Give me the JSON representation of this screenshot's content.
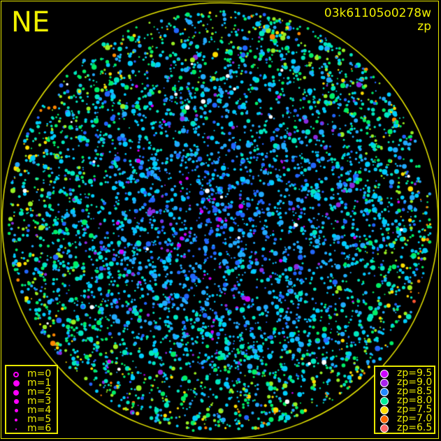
{
  "title": "NE",
  "frame_id": "03k61105o0278w",
  "frame_sub": "zp",
  "colors": {
    "frame": "#e8e800",
    "text": "#f0f000",
    "magnitude_symbol": "#ff00ff"
  },
  "magnitude_legend": [
    {
      "label": "m=0",
      "style": "ring"
    },
    {
      "label": "m=1",
      "style": "dot"
    },
    {
      "label": "m=2",
      "style": "dot"
    },
    {
      "label": "m=3",
      "style": "dot"
    },
    {
      "label": "m=4",
      "style": "dot"
    },
    {
      "label": "m=5",
      "style": "dot"
    },
    {
      "label": "m=6",
      "style": "dot"
    }
  ],
  "zp_legend": [
    {
      "label": "zp=9.5",
      "color": "#cc00ff"
    },
    {
      "label": "zp=9.0",
      "color": "#aa22ee"
    },
    {
      "label": "zp=8.5",
      "color": "#2288ff"
    },
    {
      "label": "zp=8.0",
      "color": "#00ee99"
    },
    {
      "label": "zp=7.5",
      "color": "#ffdd00"
    },
    {
      "label": "zp=7.0",
      "color": "#ff6600"
    },
    {
      "label": "zp=6.5",
      "color": "#ff6666"
    }
  ]
}
